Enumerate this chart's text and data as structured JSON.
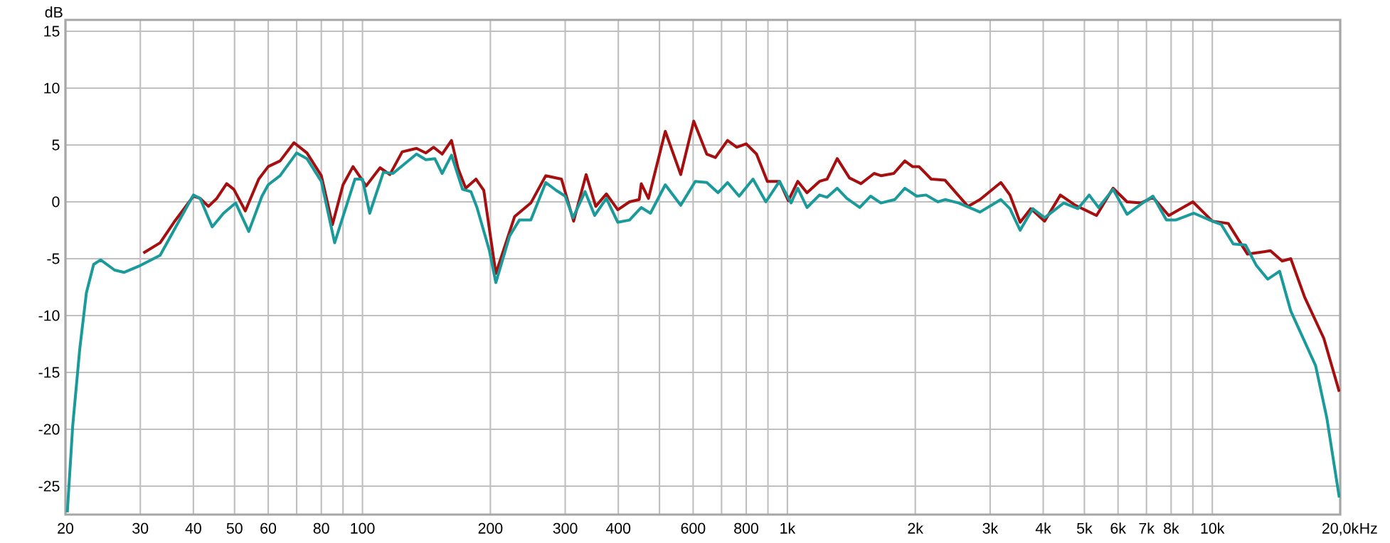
{
  "chart_data": {
    "type": "line",
    "ylabel": "dB",
    "log": "x",
    "grid": true,
    "xlim": [
      20,
      20000
    ],
    "ylim": [
      -27.5,
      16
    ],
    "xticks": [
      20,
      30,
      40,
      50,
      60,
      {
        "value": 70,
        "label": null
      },
      80,
      {
        "value": 90,
        "label": null
      },
      100,
      200,
      300,
      400,
      {
        "value": 500,
        "label": null
      },
      600,
      {
        "value": 700,
        "label": null
      },
      800,
      {
        "value": 900,
        "label": null
      },
      {
        "value": 1000,
        "label": "1k"
      },
      {
        "value": 2000,
        "label": "2k"
      },
      {
        "value": 3000,
        "label": "3k"
      },
      {
        "value": 4000,
        "label": "4k"
      },
      {
        "value": 5000,
        "label": "5k"
      },
      {
        "value": 6000,
        "label": "6k"
      },
      {
        "value": 7000,
        "label": "7k"
      },
      {
        "value": 8000,
        "label": "8k"
      },
      {
        "value": 9000,
        "label": null
      },
      {
        "value": 10000,
        "label": "10k"
      },
      {
        "value": 20000,
        "label": "20,0k"
      }
    ],
    "xlabel": "Hz",
    "yticks": [
      -25,
      -20,
      -15,
      -10,
      -5,
      0,
      5,
      10,
      15
    ],
    "series": [
      {
        "color": "#a50f0f",
        "x": [
          30.5,
          33.4,
          36,
          40,
          41.5,
          43.4,
          45.4,
          47.9,
          49.8,
          53,
          57,
          60,
          64,
          69,
          74,
          80,
          85,
          90,
          95,
          102,
          110,
          116,
          124,
          134,
          141,
          147,
          154,
          162,
          168,
          175,
          185,
          193,
          206,
          228,
          249,
          270,
          294,
          314,
          336,
          354,
          375,
          399,
          425,
          448,
          453,
          471,
          516,
          561,
          602,
          646,
          677,
          723,
          760,
          800,
          846,
          897,
          958,
          1005,
          1058,
          1112,
          1190,
          1240,
          1310,
          1400,
          1490,
          1600,
          1660,
          1780,
          1890,
          1970,
          2040,
          2180,
          2350,
          2660,
          2840,
          3180,
          3340,
          3530,
          3740,
          4030,
          4390,
          4760,
          5340,
          5840,
          6300,
          6800,
          7250,
          7900,
          9000,
          10000,
          10900,
          12100,
          13700,
          14600,
          15300,
          16500,
          18300,
          19900
        ],
        "values": [
          -4.5,
          -3.6,
          -1.8,
          0.5,
          0.3,
          -0.4,
          0.3,
          1.6,
          1.1,
          -0.8,
          2.0,
          3.1,
          3.6,
          5.2,
          4.3,
          2.3,
          -2.0,
          1.5,
          3.1,
          1.4,
          3.0,
          2.4,
          4.4,
          4.7,
          4.3,
          4.8,
          4.2,
          5.4,
          2.9,
          1.2,
          2.0,
          1.0,
          -6.3,
          -1.3,
          -0.1,
          2.3,
          2.0,
          -1.7,
          2.4,
          -0.4,
          0.7,
          -0.7,
          0.0,
          0.2,
          1.6,
          0.3,
          6.2,
          2.4,
          7.1,
          4.2,
          3.9,
          5.4,
          4.8,
          5.1,
          4.2,
          1.8,
          1.8,
          0.1,
          1.8,
          0.8,
          1.8,
          2.0,
          3.8,
          2.1,
          1.6,
          2.5,
          2.3,
          2.5,
          3.6,
          3.1,
          3.1,
          2.0,
          1.9,
          -0.4,
          0.2,
          1.7,
          0.6,
          -1.8,
          -0.6,
          -1.7,
          0.6,
          -0.3,
          -1.2,
          1.2,
          0.0,
          -0.1,
          0.4,
          -1.2,
          0.0,
          -1.7,
          -1.9,
          -4.6,
          -4.3,
          -5.2,
          -5.0,
          -8.4,
          -12.0,
          -16.7
        ]
      },
      {
        "color": "#1a9a9a",
        "x": [
          20.2,
          20.8,
          21.6,
          22.4,
          23.3,
          24.2,
          26.1,
          27.5,
          30,
          33.4,
          36,
          40,
          41.5,
          44.3,
          47.1,
          50.3,
          54,
          58,
          60,
          64,
          70,
          74,
          80,
          86,
          96,
          100,
          104,
          112,
          118,
          134,
          141,
          148,
          154,
          162,
          172,
          180,
          186,
          199,
          206,
          222,
          234,
          249,
          270,
          286,
          300,
          313,
          334,
          352,
          375,
          399,
          425,
          453,
          476,
          516,
          561,
          607,
          646,
          687,
          723,
          770,
          830,
          890,
          958,
          1020,
          1058,
          1112,
          1190,
          1240,
          1310,
          1380,
          1480,
          1570,
          1660,
          1790,
          1890,
          2015,
          2120,
          2260,
          2350,
          2530,
          2840,
          3180,
          3340,
          3530,
          3780,
          4030,
          4470,
          4830,
          5130,
          5400,
          5840,
          6300,
          6800,
          7250,
          7800,
          8200,
          9050,
          10000,
          10500,
          11200,
          11970,
          12700,
          13500,
          14400,
          15300,
          17500,
          18600,
          19900
        ],
        "values": [
          -27.3,
          -19.7,
          -13.0,
          -8.0,
          -5.5,
          -5.1,
          -6.0,
          -6.2,
          -5.6,
          -4.7,
          -2.5,
          0.6,
          0.3,
          -2.2,
          -1.0,
          -0.1,
          -2.6,
          0.5,
          1.5,
          2.3,
          4.3,
          3.8,
          1.8,
          -3.6,
          2.0,
          2.0,
          -1.0,
          2.6,
          2.5,
          4.2,
          3.7,
          3.8,
          2.5,
          4.1,
          1.1,
          0.9,
          -0.5,
          -4.3,
          -7.1,
          -3.0,
          -1.6,
          -1.6,
          1.7,
          1.0,
          0.5,
          -1.4,
          0.9,
          -1.2,
          0.3,
          -1.8,
          -1.6,
          -0.5,
          -1.0,
          1.5,
          -0.3,
          1.8,
          1.7,
          0.8,
          1.7,
          0.5,
          2.0,
          0.0,
          1.8,
          -0.1,
          1.2,
          -0.5,
          0.6,
          0.4,
          1.2,
          0.3,
          -0.5,
          0.5,
          -0.1,
          0.2,
          1.2,
          0.5,
          0.6,
          0.0,
          0.2,
          -0.1,
          -0.9,
          0.2,
          -0.6,
          -2.5,
          -0.6,
          -1.4,
          -0.1,
          -0.6,
          0.6,
          -0.5,
          1.1,
          -1.1,
          -0.2,
          0.5,
          -1.6,
          -1.6,
          -1.0,
          -1.7,
          -2.0,
          -3.7,
          -3.8,
          -5.6,
          -6.8,
          -6.1,
          -9.6,
          -14.4,
          -19.0,
          -26.0
        ]
      }
    ]
  }
}
